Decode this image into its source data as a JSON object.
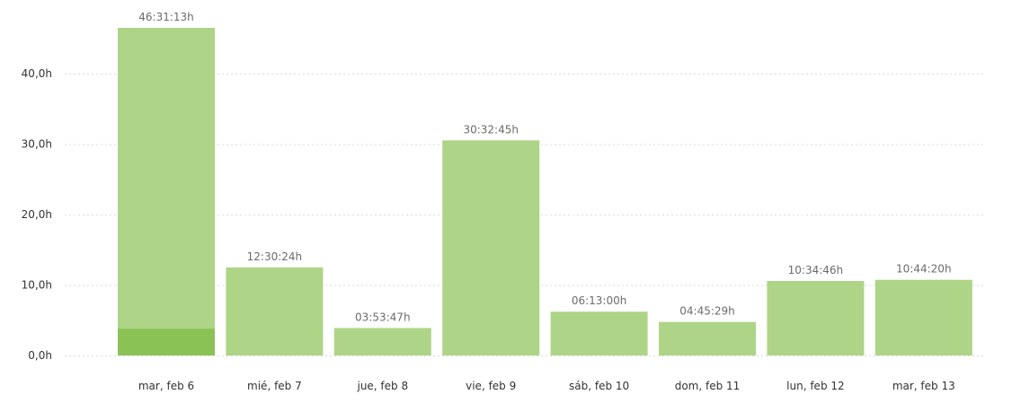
{
  "chart_data": {
    "type": "bar",
    "categories": [
      "mar, feb 6",
      "mié, feb 7",
      "jue, feb 8",
      "vie, feb 9",
      "sáb, feb 10",
      "dom, feb 11",
      "lun, feb 12",
      "mar, feb 13"
    ],
    "values": [
      46.5203,
      12.5067,
      3.8964,
      30.5458,
      6.2167,
      4.7581,
      10.5794,
      10.7389
    ],
    "highlight_values": [
      3.8,
      0,
      0,
      0,
      0,
      0,
      0,
      0
    ],
    "value_labels": [
      "46:31:13h",
      "12:30:24h",
      "03:53:47h",
      "30:32:45h",
      "06:13:00h",
      "04:45:29h",
      "10:34:46h",
      "10:44:20h"
    ],
    "y_ticks": [
      0,
      10,
      20,
      30,
      40
    ],
    "y_tick_labels": [
      "0,0h",
      "10,0h",
      "20,0h",
      "30,0h",
      "40,0h"
    ],
    "ylim": [
      0,
      46.5203
    ],
    "grid": true,
    "legend": false,
    "title": "",
    "xlabel": "",
    "ylabel": "",
    "colors": {
      "bar": "#aed487",
      "highlight": "#8bc255",
      "grid": "#d9d9d9",
      "tick_text": "#333333",
      "value_text": "#6b6b6b"
    }
  }
}
